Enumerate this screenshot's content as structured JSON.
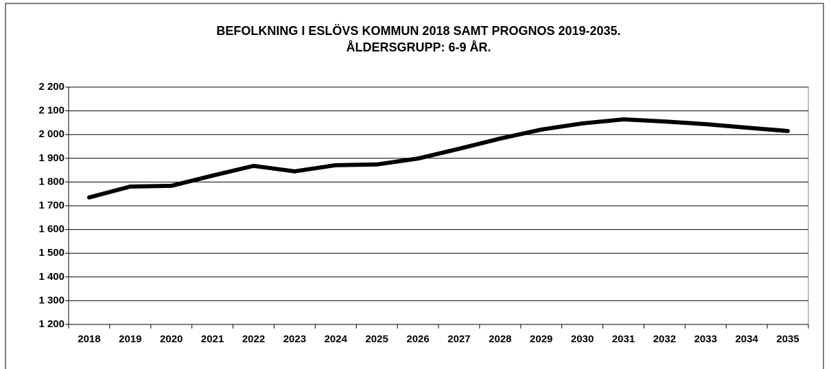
{
  "chart_data": {
    "type": "line",
    "title": "BEFOLKNING I ESLÖVS KOMMUN 2018 SAMT PROGNOS 2019-2035.",
    "subtitle": "ÅLDERSGRUPP: 6-9 ÅR.",
    "categories": [
      "2018",
      "2019",
      "2020",
      "2021",
      "2022",
      "2023",
      "2024",
      "2025",
      "2026",
      "2027",
      "2028",
      "2029",
      "2030",
      "2031",
      "2032",
      "2033",
      "2034",
      "2035"
    ],
    "values": [
      1735,
      1781,
      1784,
      1827,
      1868,
      1845,
      1871,
      1874,
      1899,
      1940,
      1983,
      2021,
      2047,
      2064,
      2055,
      2044,
      2029,
      2015
    ],
    "color": "#000000",
    "ylim": [
      1200,
      2200
    ],
    "yticks": [
      {
        "value": 1200,
        "label": "1 200"
      },
      {
        "value": 1300,
        "label": "1 300"
      },
      {
        "value": 1400,
        "label": "1 400"
      },
      {
        "value": 1500,
        "label": "1 500"
      },
      {
        "value": 1600,
        "label": "1 600"
      },
      {
        "value": 1700,
        "label": "1 700"
      },
      {
        "value": 1800,
        "label": "1 800"
      },
      {
        "value": 1900,
        "label": "1 900"
      },
      {
        "value": 2000,
        "label": "2 000"
      },
      {
        "value": 2100,
        "label": "2 100"
      },
      {
        "value": 2200,
        "label": "2 200"
      }
    ],
    "grid": true
  }
}
